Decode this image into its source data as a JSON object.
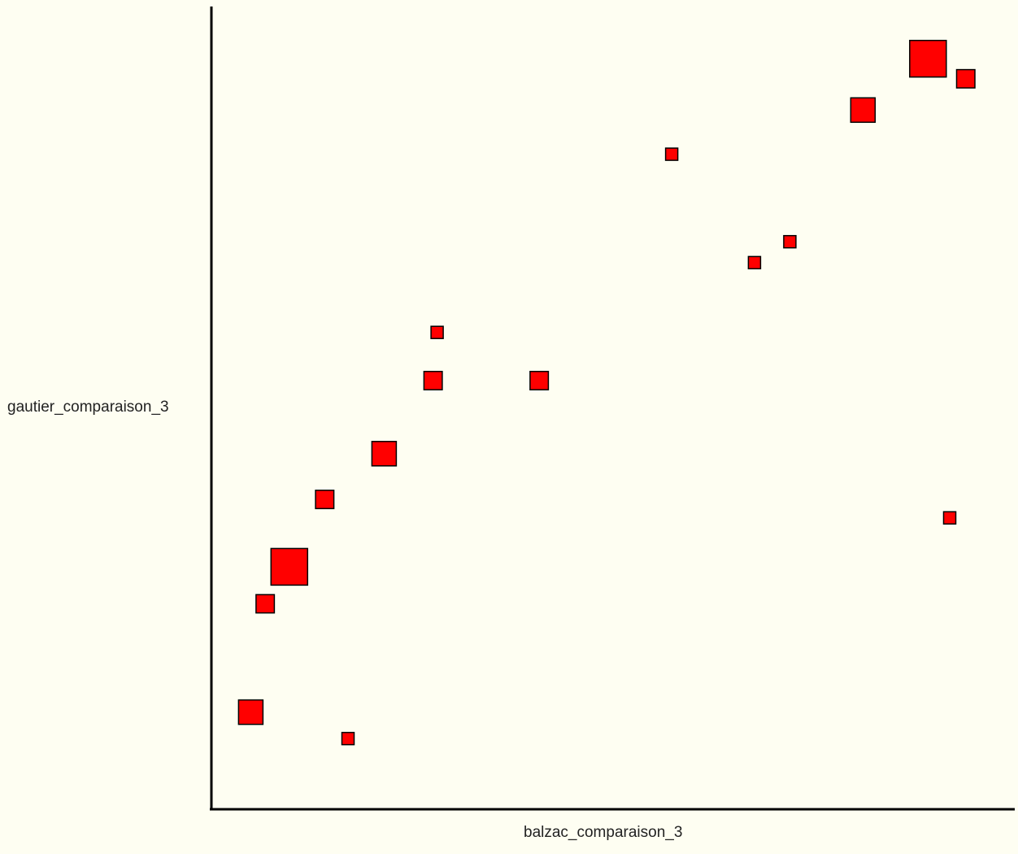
{
  "chart_data": {
    "type": "scatter",
    "xlabel": "balzac_comparaison_3",
    "ylabel": "gautier_comparaison_3",
    "xlim": [
      0,
      100
    ],
    "ylim": [
      0,
      100
    ],
    "grid": false,
    "colors": {
      "background": "#fefef2",
      "marker_fill": "#ff0000",
      "marker_stroke": "#000000",
      "axis": "#000000"
    },
    "points": [
      {
        "x": 89.2,
        "y": 93.5,
        "size": 3
      },
      {
        "x": 93.9,
        "y": 91.0,
        "size": 1.5
      },
      {
        "x": 81.1,
        "y": 87.1,
        "size": 2
      },
      {
        "x": 57.3,
        "y": 81.6,
        "size": 1
      },
      {
        "x": 72.0,
        "y": 70.7,
        "size": 1
      },
      {
        "x": 67.6,
        "y": 68.1,
        "size": 1
      },
      {
        "x": 28.1,
        "y": 59.4,
        "size": 1
      },
      {
        "x": 27.6,
        "y": 53.4,
        "size": 1.5
      },
      {
        "x": 40.8,
        "y": 53.4,
        "size": 1.5
      },
      {
        "x": 21.5,
        "y": 44.3,
        "size": 2
      },
      {
        "x": 14.1,
        "y": 38.6,
        "size": 1.5
      },
      {
        "x": 9.7,
        "y": 30.2,
        "size": 3
      },
      {
        "x": 6.7,
        "y": 25.6,
        "size": 1.5
      },
      {
        "x": 91.9,
        "y": 36.3,
        "size": 1
      },
      {
        "x": 4.9,
        "y": 12.1,
        "size": 2
      },
      {
        "x": 17.0,
        "y": 8.8,
        "size": 1
      }
    ]
  }
}
